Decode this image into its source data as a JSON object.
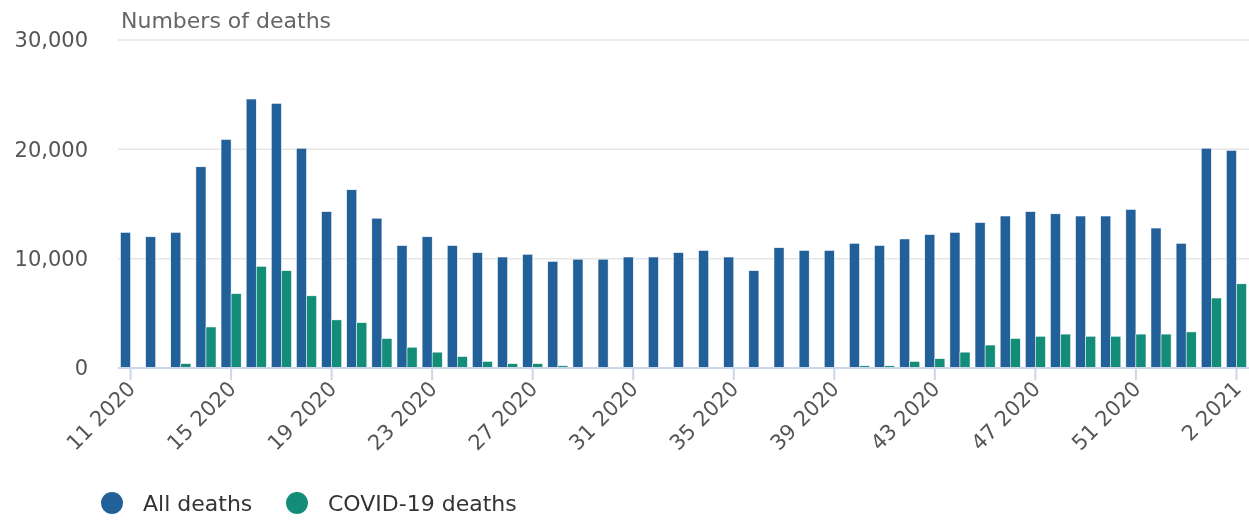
{
  "chart_data": {
    "type": "bar",
    "ylabel": "Numbers of deaths",
    "categories": [
      "11 2020",
      null,
      null,
      null,
      "15 2020",
      null,
      null,
      null,
      "19 2020",
      null,
      null,
      null,
      "23 2020",
      null,
      null,
      null,
      "27 2020",
      null,
      null,
      null,
      "31 2020",
      null,
      null,
      null,
      "35 2020",
      null,
      null,
      null,
      "39 2020",
      null,
      null,
      null,
      "43 2020",
      null,
      null,
      null,
      "47 2020",
      null,
      null,
      null,
      "51 2020",
      null,
      null,
      null,
      "2 2021"
    ],
    "series": [
      {
        "name": "All deaths",
        "color": "#22609a",
        "values": [
          12400,
          12000,
          12400,
          18400,
          20900,
          24600,
          24200,
          20100,
          14300,
          16300,
          13700,
          11200,
          12000,
          11200,
          10550,
          10150,
          10400,
          9750,
          9950,
          9950,
          10150,
          10150,
          10550,
          10750,
          10150,
          8900,
          11000,
          10750,
          10750,
          11400,
          11200,
          11800,
          12200,
          12400,
          13300,
          13900,
          14300,
          14100,
          13900,
          13900,
          14500,
          12800,
          11400,
          20100,
          19900
        ]
      },
      {
        "name": "COVID-19 deaths",
        "color": "#138c78",
        "values": [
          0,
          0,
          400,
          3750,
          6800,
          9300,
          8900,
          6600,
          4400,
          4150,
          2700,
          1900,
          1450,
          1050,
          600,
          400,
          400,
          200,
          0,
          0,
          0,
          0,
          0,
          0,
          0,
          0,
          0,
          0,
          0,
          200,
          200,
          600,
          850,
          1450,
          2100,
          2700,
          2900,
          3100,
          2900,
          2900,
          3100,
          3100,
          3300,
          6400,
          7700
        ]
      }
    ],
    "ylim": [
      0,
      30000
    ],
    "yticks": [
      {
        "value": 0,
        "label": "0"
      },
      {
        "value": 10000,
        "label": "10,000"
      },
      {
        "value": 20000,
        "label": "20,000"
      },
      {
        "value": 30000,
        "label": "30,000"
      }
    ],
    "grid": "y",
    "legend": "bottom"
  }
}
